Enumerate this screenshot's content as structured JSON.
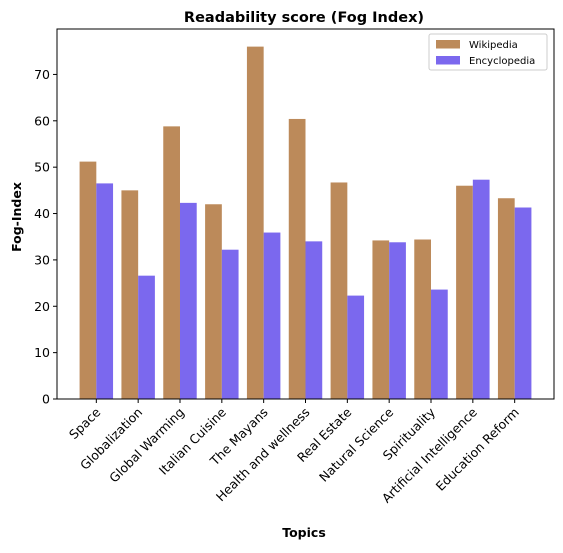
{
  "chart_data": {
    "type": "bar",
    "title": "Readability score (Fog Index)",
    "xlabel": "Topics",
    "ylabel": "Fog-Index",
    "categories": [
      "Space",
      "Globalization",
      "Global Warming",
      "Italian Cuisine",
      "The Mayans",
      "Health and wellness",
      "Real Estate",
      "Natural Science",
      "Spirituality",
      "Artificial Intelligence",
      "Education Reform"
    ],
    "series": [
      {
        "name": "Wikipedia",
        "color": "#bc8a5a",
        "values": [
          51.2,
          45.0,
          58.8,
          42.0,
          76.0,
          60.4,
          46.7,
          34.2,
          34.4,
          46.0,
          43.3
        ]
      },
      {
        "name": "Encyclopedia",
        "color": "#7b68ee",
        "values": [
          46.5,
          26.6,
          42.3,
          32.2,
          35.9,
          34.0,
          22.3,
          33.8,
          23.6,
          47.3,
          41.3
        ]
      }
    ],
    "ylim": [
      0,
      79.8
    ],
    "yticks": [
      0,
      10,
      20,
      30,
      40,
      50,
      60,
      70
    ],
    "legend_position": "upper right",
    "grid": false
  }
}
